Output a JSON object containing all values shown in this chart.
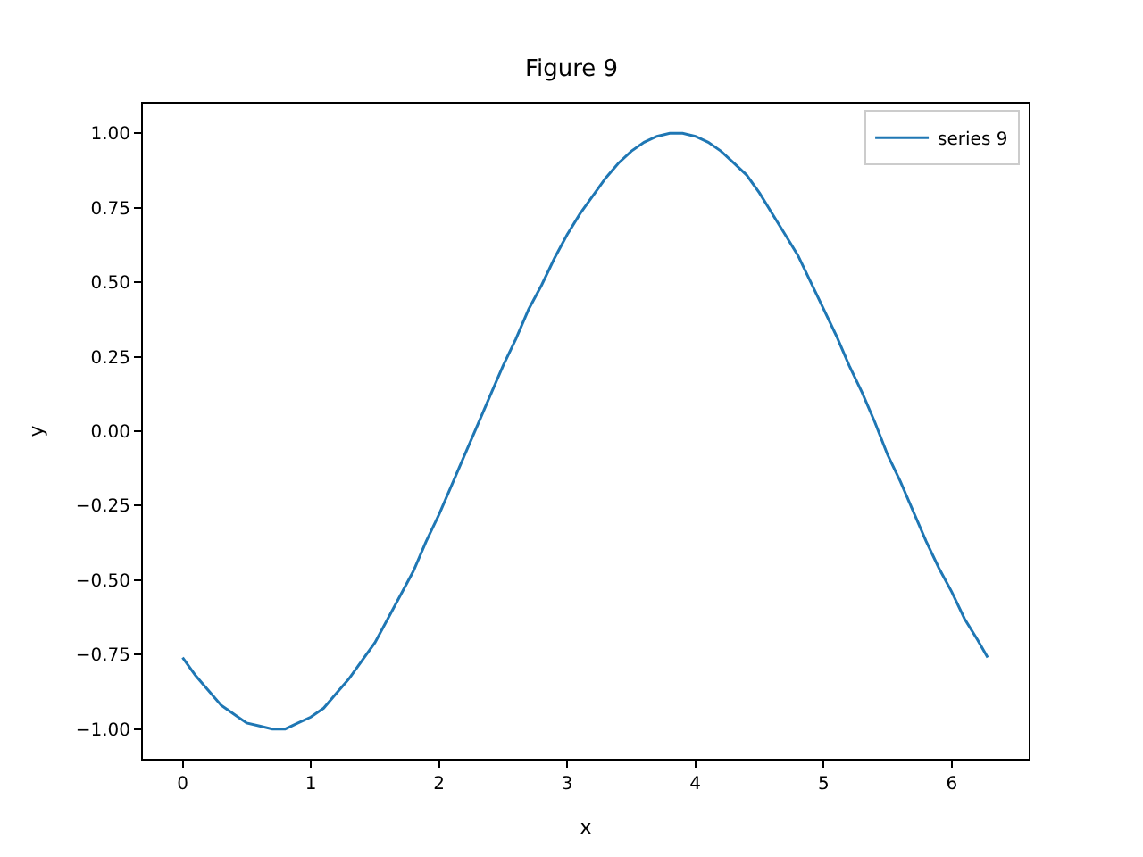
{
  "chart_data": {
    "type": "line",
    "title": "Figure 9",
    "xlabel": "x",
    "ylabel": "y",
    "series": [
      {
        "name": "series 9",
        "color": "#1f77b4",
        "x": [
          0,
          0.1,
          0.2,
          0.3,
          0.4,
          0.5,
          0.6,
          0.7,
          0.8,
          0.9,
          1.0,
          1.1,
          1.2,
          1.3,
          1.4,
          1.5,
          1.6,
          1.7,
          1.8,
          1.9,
          2.0,
          2.1,
          2.2,
          2.3,
          2.4,
          2.5,
          2.6,
          2.7,
          2.8,
          2.9,
          3.0,
          3.1,
          3.2,
          3.3,
          3.4,
          3.5,
          3.6,
          3.7,
          3.8,
          3.9,
          4.0,
          4.1,
          4.2,
          4.3,
          4.4,
          4.5,
          4.6,
          4.7,
          4.8,
          4.9,
          5.0,
          5.1,
          5.2,
          5.3,
          5.4,
          5.5,
          5.6,
          5.7,
          5.8,
          5.9,
          6.0,
          6.1,
          6.2,
          6.28
        ],
        "values": [
          -0.76,
          -0.82,
          -0.87,
          -0.92,
          -0.95,
          -0.98,
          -0.99,
          -1.0,
          -1.0,
          -0.98,
          -0.96,
          -0.93,
          -0.88,
          -0.83,
          -0.77,
          -0.71,
          -0.63,
          -0.55,
          -0.47,
          -0.37,
          -0.28,
          -0.18,
          -0.08,
          0.02,
          0.12,
          0.22,
          0.31,
          0.41,
          0.49,
          0.58,
          0.66,
          0.73,
          0.79,
          0.85,
          0.9,
          0.94,
          0.97,
          0.99,
          1.0,
          1.0,
          0.99,
          0.97,
          0.94,
          0.9,
          0.86,
          0.8,
          0.73,
          0.66,
          0.59,
          0.5,
          0.41,
          0.32,
          0.22,
          0.13,
          0.03,
          -0.08,
          -0.17,
          -0.27,
          -0.37,
          -0.46,
          -0.54,
          -0.63,
          -0.7,
          -0.76
        ]
      }
    ],
    "xlim": [
      -0.31,
      6.6
    ],
    "ylim": [
      -1.1,
      1.1
    ],
    "xticks": [
      0,
      1,
      2,
      3,
      4,
      5,
      6
    ],
    "yticks": [
      {
        "value": -1,
        "label": "−1.00"
      },
      {
        "value": -0.75,
        "label": "−0.75"
      },
      {
        "value": -0.5,
        "label": "−0.50"
      },
      {
        "value": -0.25,
        "label": "−0.25"
      },
      {
        "value": 0,
        "label": "0.00"
      },
      {
        "value": 0.25,
        "label": "0.25"
      },
      {
        "value": 0.5,
        "label": "0.50"
      },
      {
        "value": 0.75,
        "label": "0.75"
      },
      {
        "value": 1,
        "label": "1.00"
      }
    ],
    "legend": "top right",
    "marker": "none",
    "line_style": "solid"
  }
}
